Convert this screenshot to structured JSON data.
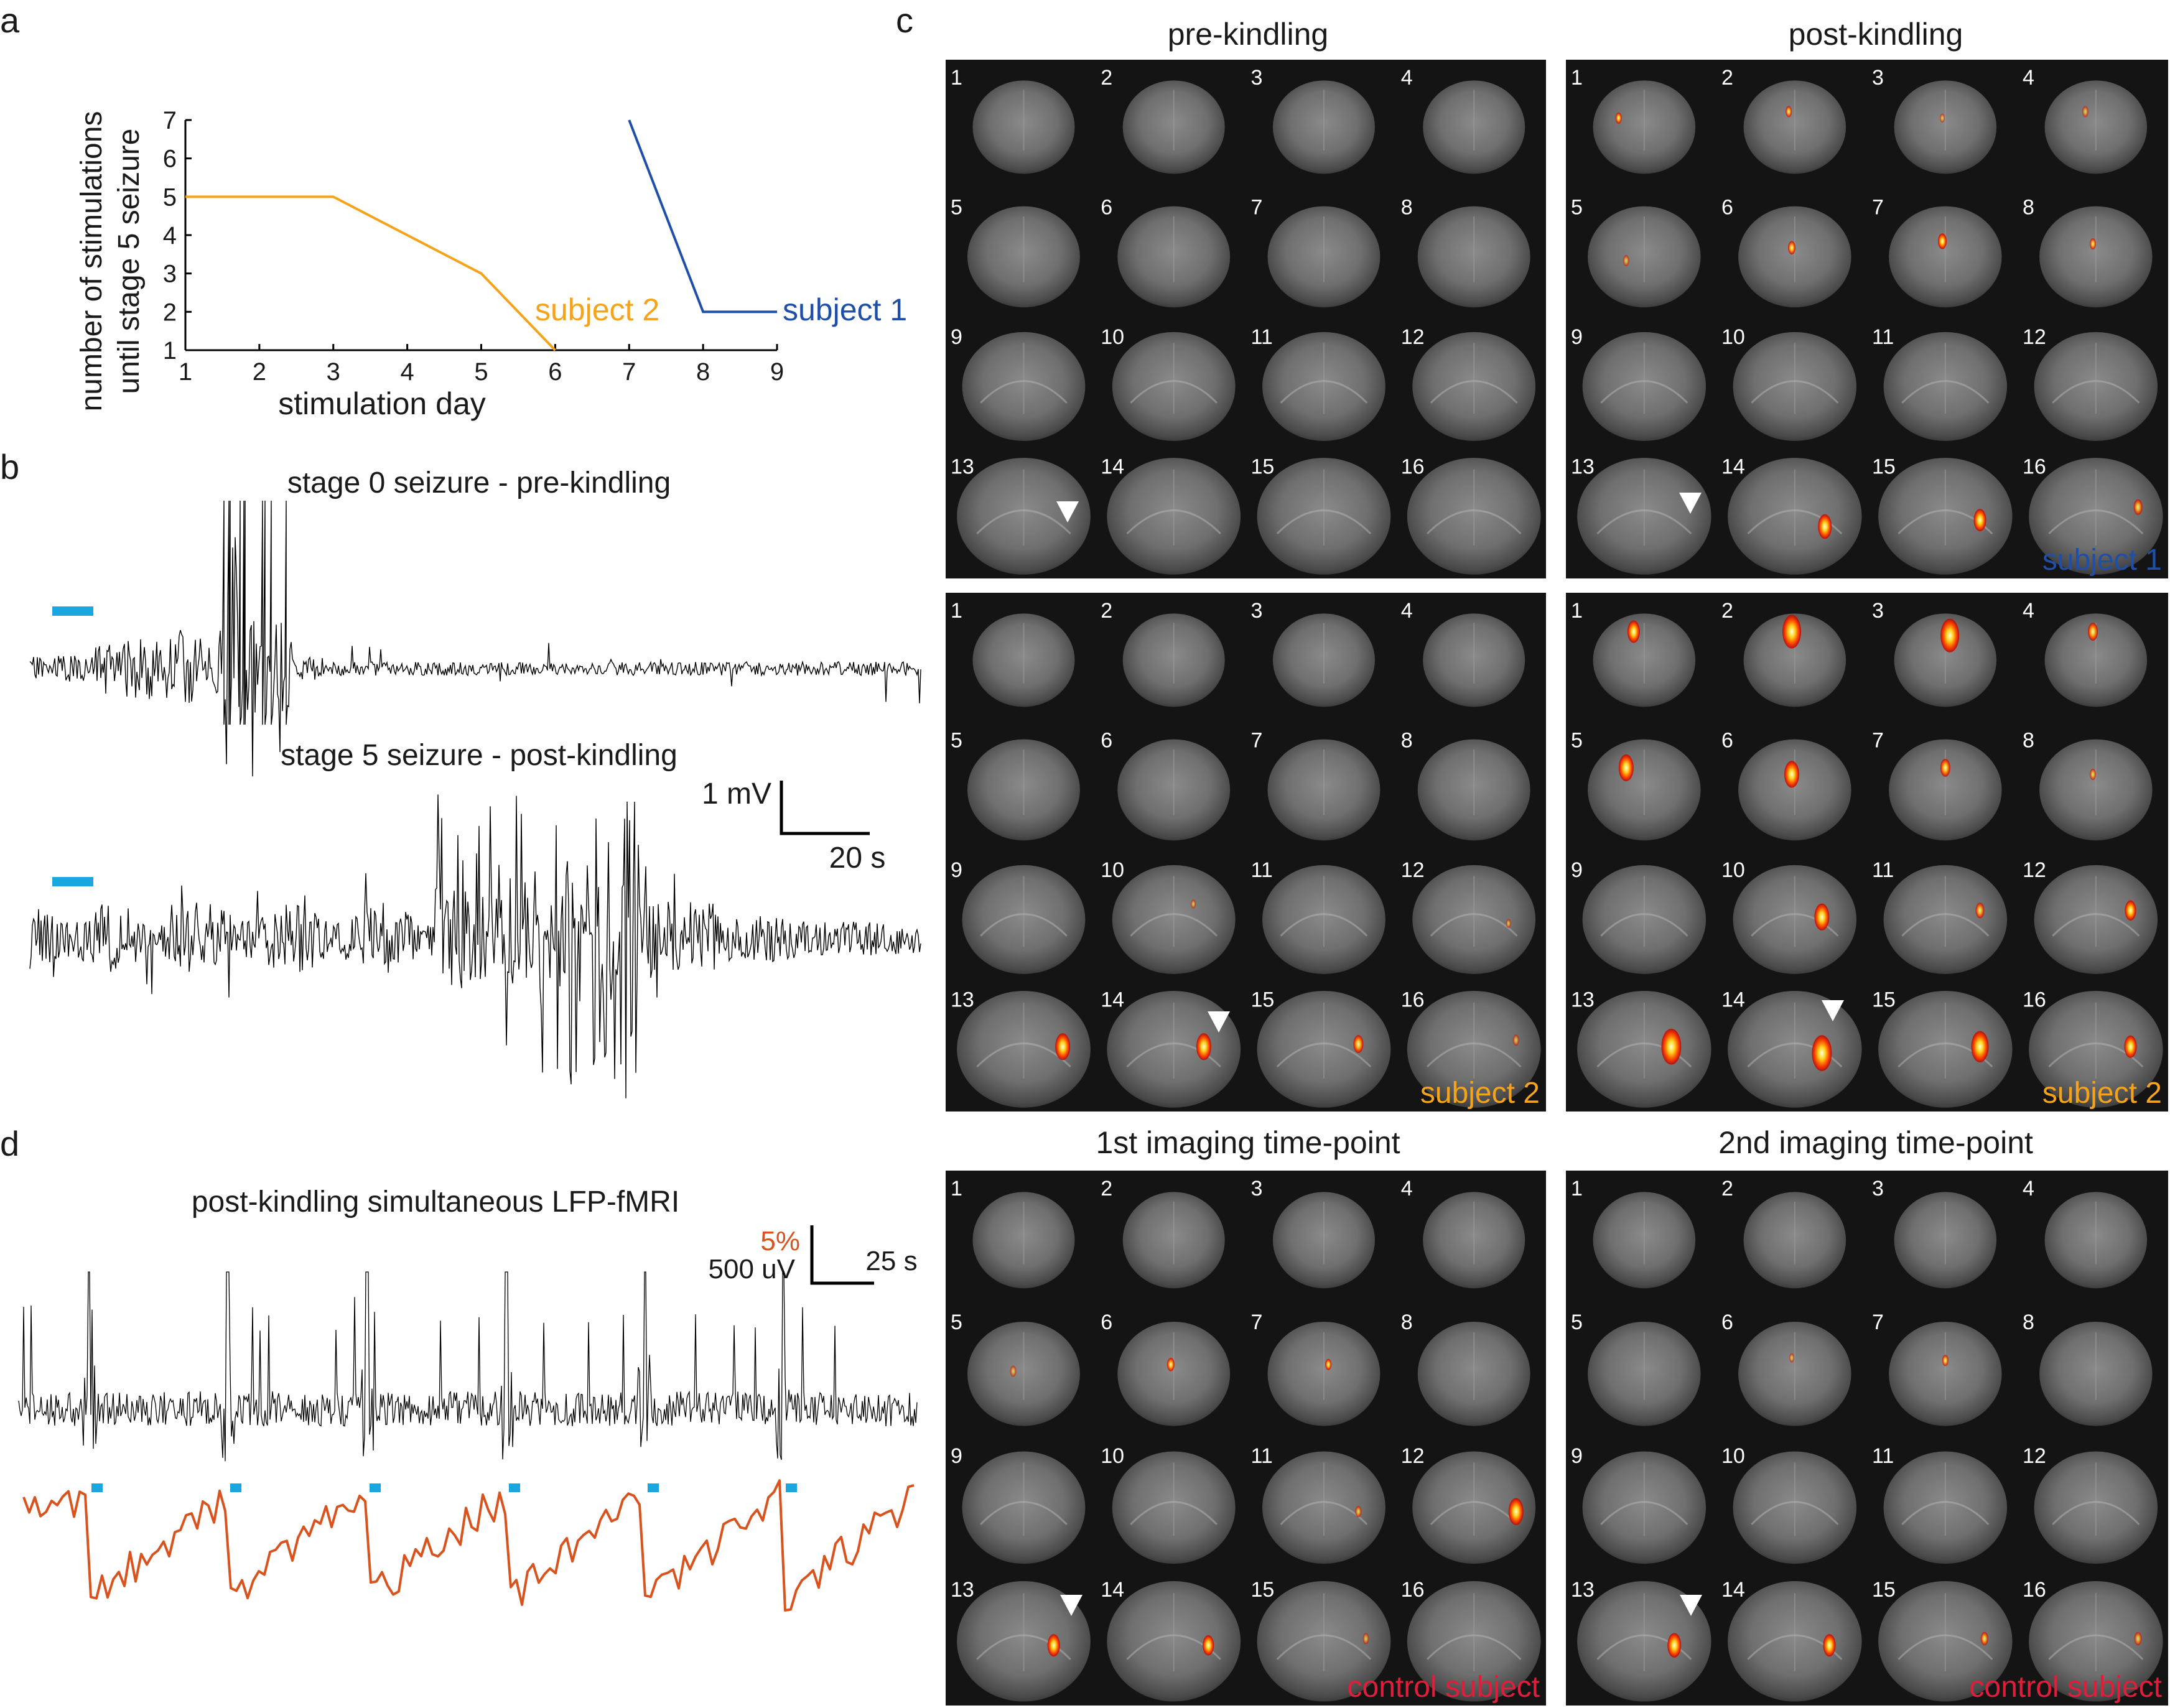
{
  "panels": {
    "a": {
      "letter": "a",
      "ylabel_line1": "number of stimulations",
      "ylabel_line2": "until stage 5 seizure",
      "xlabel": "stimulation day",
      "xticks": [
        "1",
        "2",
        "3",
        "4",
        "5",
        "6",
        "7",
        "8",
        "9"
      ],
      "yticks": [
        "1",
        "2",
        "3",
        "4",
        "5",
        "6",
        "7"
      ],
      "series_labels": {
        "s2": "subject 2",
        "s1": "subject 1"
      }
    },
    "b": {
      "letter": "b",
      "title1": "stage 0 seizure - pre-kindling",
      "title2": "stage 5 seizure - post-kindling",
      "scale_v": "1 mV",
      "scale_h": "20 s"
    },
    "c": {
      "letter": "c",
      "col1": "pre-kindling",
      "col2": "post-kindling",
      "col3": "1st imaging time-point",
      "col4": "2nd imaging time-point",
      "slice_numbers": [
        "1",
        "2",
        "3",
        "4",
        "5",
        "6",
        "7",
        "8",
        "9",
        "10",
        "11",
        "12",
        "13",
        "14",
        "15",
        "16"
      ],
      "subject1": "subject 1",
      "subject2": "subject 2",
      "control": "control subject"
    },
    "d": {
      "letter": "d",
      "title": "post-kindling simultaneous LFP-fMRI",
      "scale_pct": "5%",
      "scale_uv": "500 uV",
      "scale_t": "25 s"
    }
  },
  "colors": {
    "subject1": "#1f4fa8",
    "subject2": "#f5a31a",
    "control": "#e01e3c",
    "stim": "#1aa7e0",
    "bold": "#d9531e",
    "trace": "#000000"
  },
  "chart_data": {
    "type": "line",
    "xlabel": "stimulation day",
    "ylabel": "number of stimulations until stage 5 seizure",
    "xlim": [
      1,
      9
    ],
    "ylim": [
      1,
      7
    ],
    "grid": false,
    "series": [
      {
        "name": "subject 2",
        "x": [
          1,
          3,
          5,
          6
        ],
        "y": [
          5,
          5,
          3,
          1
        ]
      },
      {
        "name": "subject 1",
        "x": [
          7,
          8,
          9
        ],
        "y": [
          7,
          2,
          2
        ]
      }
    ]
  },
  "grids": [
    {
      "id": "pre1",
      "label": "",
      "act": []
    },
    {
      "id": "post1",
      "label": "subject 1",
      "act": [
        [
          1,
          0.35,
          0.45,
          0.5,
          0.9
        ],
        [
          2,
          0.48,
          0.4,
          0.5,
          0.8
        ],
        [
          3,
          0.5,
          0.45,
          0.4,
          0.6
        ],
        [
          4,
          0.45,
          0.4,
          0.5,
          0.6
        ],
        [
          5,
          0.4,
          0.55,
          0.5,
          0.6
        ],
        [
          6,
          0.5,
          0.45,
          0.6,
          0.9
        ],
        [
          7,
          0.5,
          0.4,
          0.7,
          1.0
        ],
        [
          8,
          0.5,
          0.42,
          0.5,
          0.8
        ],
        [
          14,
          0.72,
          0.6,
          1.1,
          1.0
        ],
        [
          15,
          0.75,
          0.55,
          1.0,
          1.0
        ],
        [
          16,
          0.8,
          0.45,
          0.7,
          0.8
        ]
      ]
    },
    {
      "id": "pre2",
      "label": "subject 2",
      "act": [
        [
          10,
          0.65,
          0.4,
          0.4,
          0.6
        ],
        [
          12,
          0.75,
          0.55,
          0.4,
          0.6
        ],
        [
          13,
          0.78,
          0.5,
          1.2,
          1.0
        ],
        [
          14,
          0.72,
          0.5,
          1.2,
          1.0
        ],
        [
          15,
          0.75,
          0.48,
          0.8,
          0.9
        ],
        [
          16,
          0.8,
          0.45,
          0.5,
          0.6
        ]
      ]
    },
    {
      "id": "post2",
      "label": "subject 2",
      "act": [
        [
          1,
          0.45,
          0.3,
          1.0,
          1.0
        ],
        [
          2,
          0.5,
          0.3,
          1.5,
          1.0
        ],
        [
          3,
          0.55,
          0.33,
          1.5,
          1.0
        ],
        [
          4,
          0.5,
          0.3,
          0.8,
          0.9
        ],
        [
          5,
          0.4,
          0.35,
          1.2,
          1.0
        ],
        [
          6,
          0.5,
          0.4,
          1.2,
          1.0
        ],
        [
          7,
          0.52,
          0.35,
          0.8,
          0.9
        ],
        [
          8,
          0.5,
          0.4,
          0.5,
          0.7
        ],
        [
          10,
          0.7,
          0.5,
          1.2,
          1.0
        ],
        [
          11,
          0.75,
          0.45,
          0.7,
          0.8
        ],
        [
          12,
          0.75,
          0.45,
          0.9,
          1.0
        ],
        [
          13,
          0.7,
          0.5,
          1.6,
          1.0
        ],
        [
          14,
          0.7,
          0.55,
          1.6,
          1.0
        ],
        [
          15,
          0.75,
          0.5,
          1.4,
          1.0
        ],
        [
          16,
          0.75,
          0.5,
          1.0,
          1.0
        ]
      ]
    },
    {
      "id": "ctrl1",
      "label": "control subject",
      "act": [
        [
          5,
          0.45,
          0.5,
          0.5,
          0.6
        ],
        [
          6,
          0.5,
          0.45,
          0.6,
          0.9
        ],
        [
          7,
          0.55,
          0.45,
          0.5,
          0.9
        ],
        [
          11,
          0.75,
          0.55,
          0.5,
          0.7
        ],
        [
          12,
          0.8,
          0.55,
          1.2,
          1.0
        ],
        [
          13,
          0.72,
          0.55,
          1.0,
          1.0
        ],
        [
          14,
          0.75,
          0.55,
          0.9,
          1.0
        ],
        [
          15,
          0.8,
          0.5,
          0.5,
          0.6
        ]
      ]
    },
    {
      "id": "ctrl2",
      "label": "control subject",
      "act": [
        [
          6,
          0.5,
          0.4,
          0.4,
          0.6
        ],
        [
          7,
          0.52,
          0.42,
          0.5,
          0.8
        ],
        [
          13,
          0.72,
          0.55,
          1.1,
          1.0
        ],
        [
          14,
          0.75,
          0.55,
          1.0,
          1.0
        ],
        [
          15,
          0.78,
          0.5,
          0.6,
          0.8
        ],
        [
          16,
          0.8,
          0.5,
          0.6,
          0.7
        ]
      ]
    }
  ]
}
